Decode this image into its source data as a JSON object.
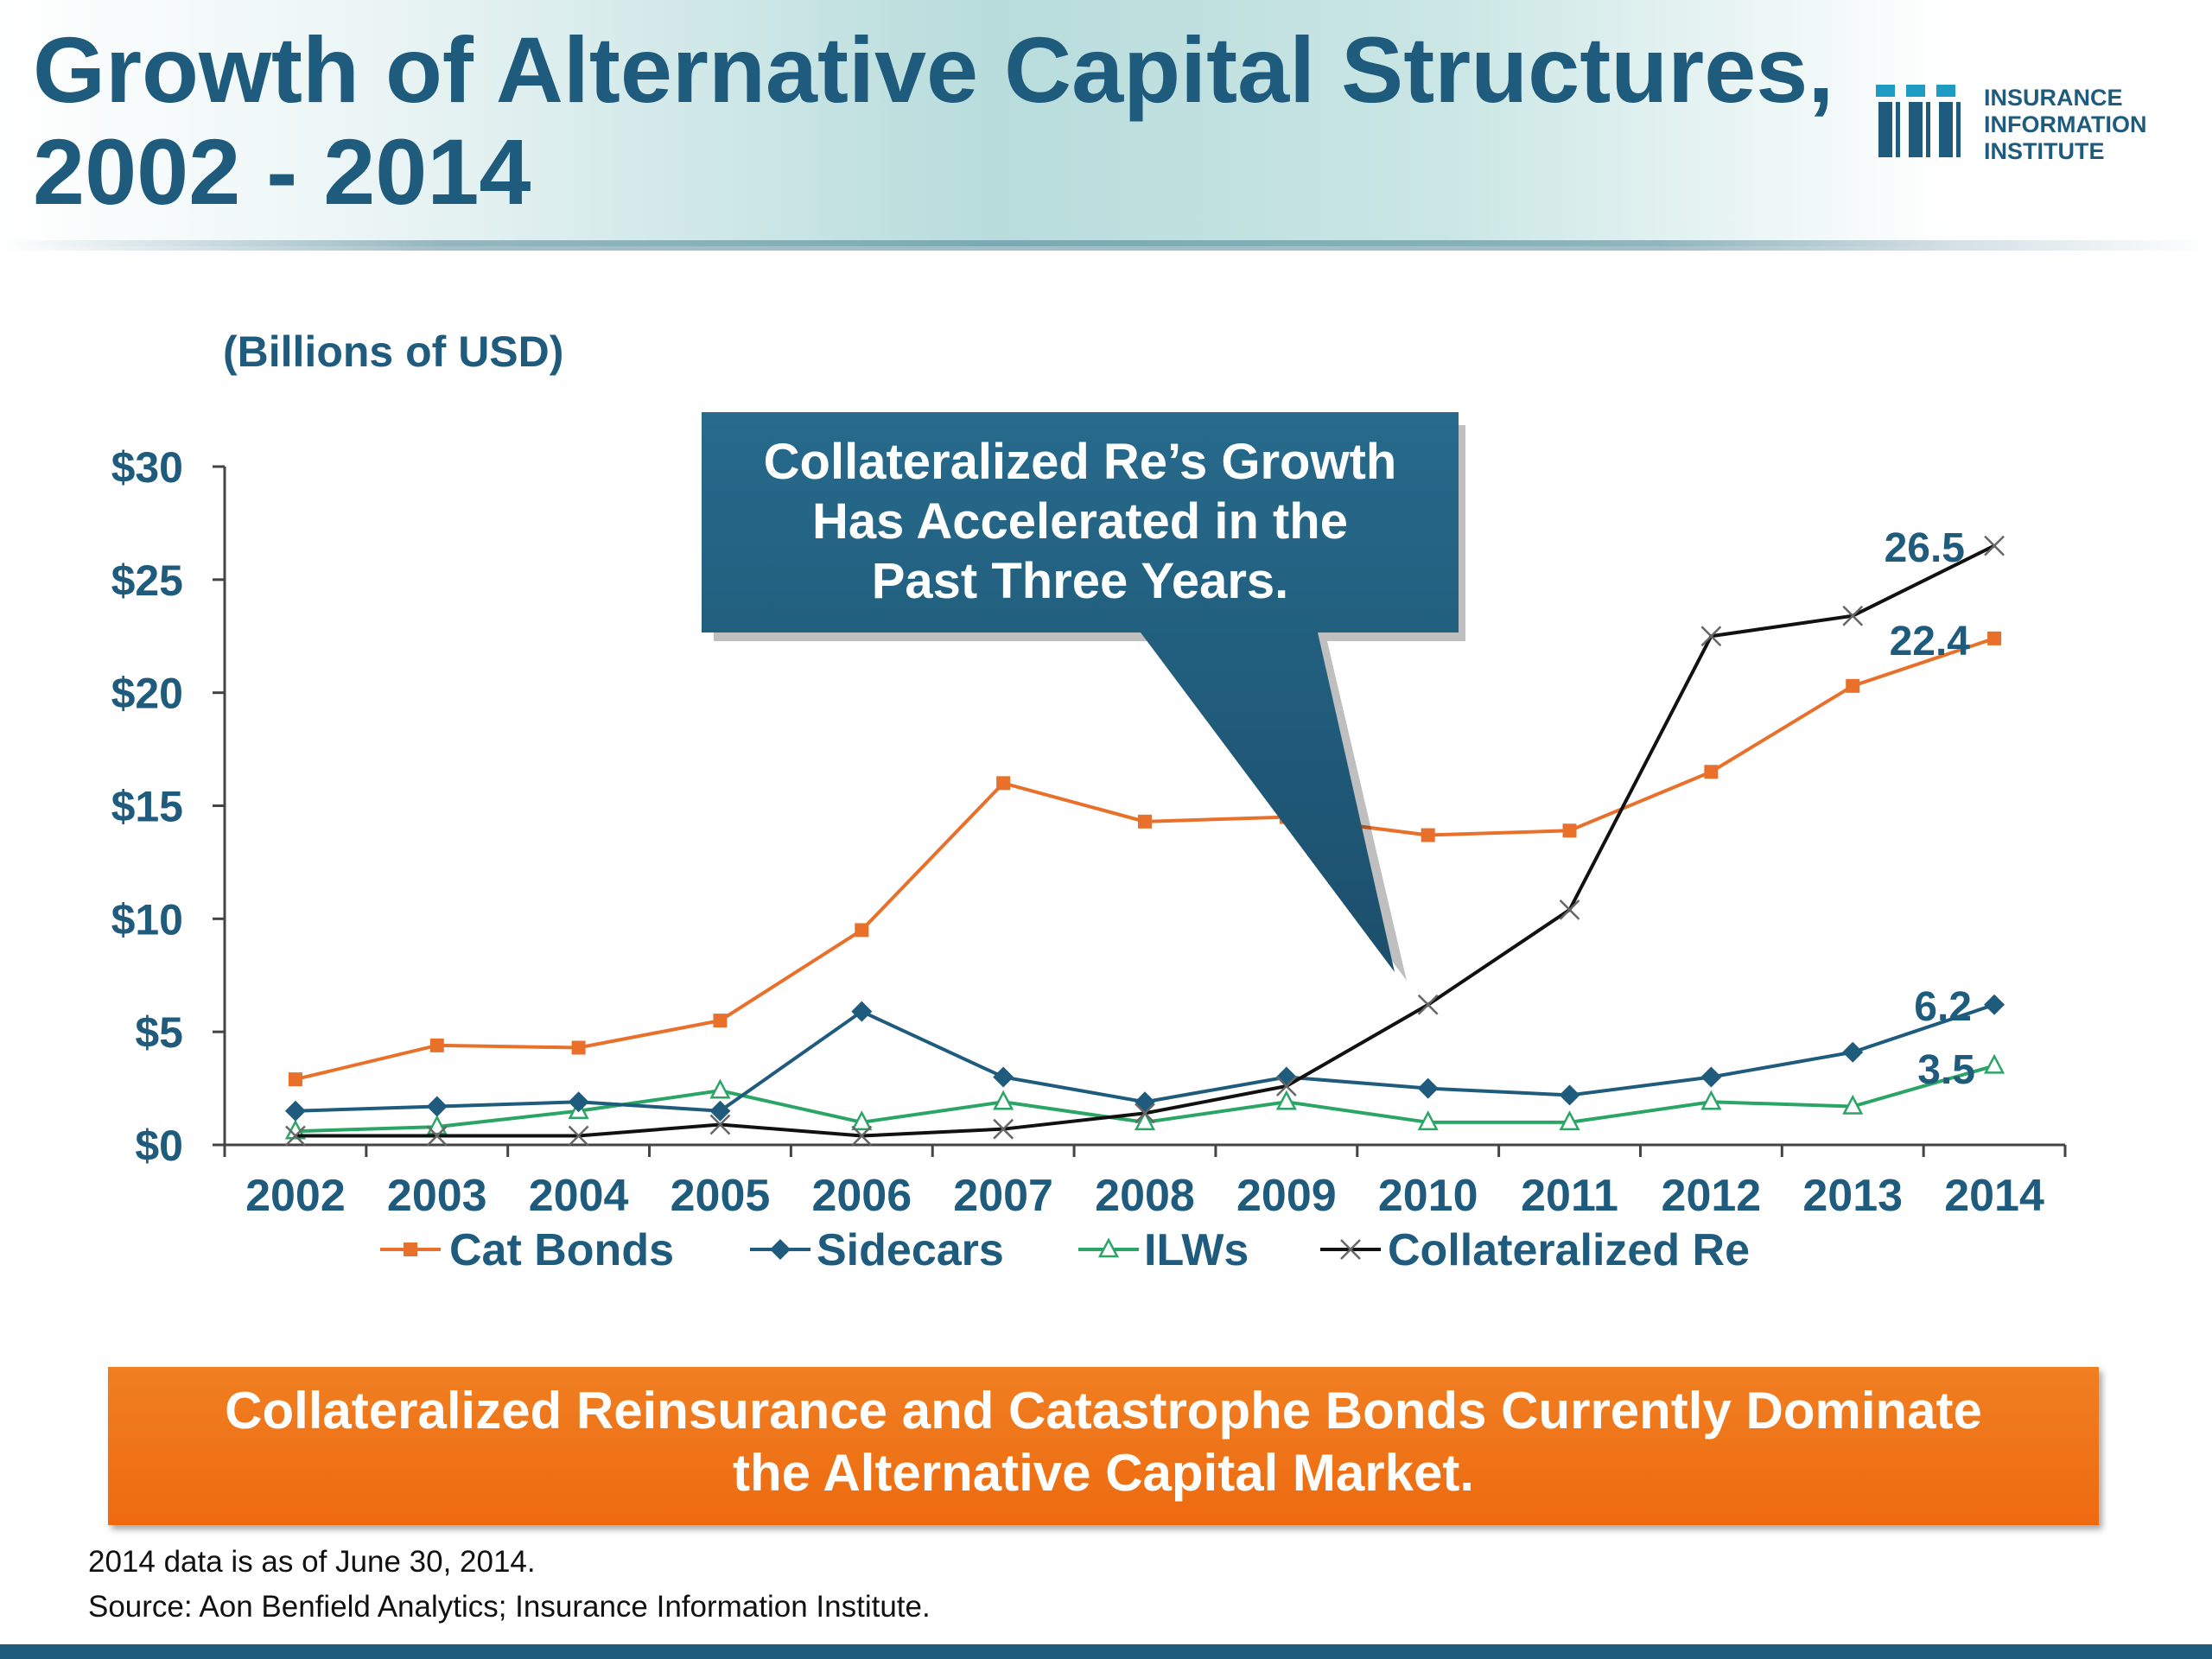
{
  "header": {
    "title_line1": "Growth of Alternative Capital Structures,",
    "title_line2": "2002 - 2014",
    "logo_lines": [
      "INSURANCE",
      "INFORMATION",
      "INSTITUTE"
    ]
  },
  "callout": {
    "lines": [
      "Collateralized Re’s Growth",
      "Has Accelerated in the",
      "Past Three Years."
    ]
  },
  "banner": {
    "lines": [
      "Collateralized Reinsurance and Catastrophe Bonds Currently Dominate",
      "the Alternative Capital Market."
    ]
  },
  "footnotes": {
    "note": "2014 data is as of June 30, 2014.",
    "source": "Source: Aon Benfield Analytics; Insurance Information Institute."
  },
  "colors": {
    "navy": "#1f5b7d",
    "cat_bonds": "#e8702a",
    "sidecars": "#1f5b7d",
    "ilws": "#2aa565",
    "collateralized_re": "#111111",
    "banner": "#ee6a10"
  },
  "chart_data": {
    "type": "line",
    "title": "Growth of Alternative Capital Structures, 2002 - 2014",
    "ylabel": "(Billions of USD)",
    "xlabel": "",
    "ylim": [
      0,
      30
    ],
    "yticks": [
      0,
      5,
      10,
      15,
      20,
      25,
      30
    ],
    "ytick_labels": [
      "$0",
      "$5",
      "$10",
      "$15",
      "$20",
      "$25",
      "$30"
    ],
    "categories": [
      "2002",
      "2003",
      "2004",
      "2005",
      "2006",
      "2007",
      "2008",
      "2009",
      "2010",
      "2011",
      "2012",
      "2013",
      "2014"
    ],
    "grid": false,
    "legend_position": "bottom",
    "series": [
      {
        "name": "Cat Bonds",
        "marker": "square",
        "color": "#e8702a",
        "values": [
          2.9,
          4.4,
          4.3,
          5.5,
          9.5,
          16.0,
          14.3,
          14.5,
          13.7,
          13.9,
          16.5,
          20.3,
          22.4
        ],
        "end_label": "22.4"
      },
      {
        "name": "Sidecars",
        "marker": "diamond",
        "color": "#1f5b7d",
        "values": [
          1.5,
          1.7,
          1.9,
          1.5,
          5.9,
          3.0,
          1.9,
          3.0,
          2.5,
          2.2,
          3.0,
          4.1,
          6.2
        ],
        "end_label": "6.2"
      },
      {
        "name": "ILWs",
        "marker": "triangle",
        "color": "#2aa565",
        "values": [
          0.6,
          0.8,
          1.5,
          2.4,
          1.0,
          1.9,
          1.0,
          1.9,
          1.0,
          1.0,
          1.9,
          1.7,
          3.5
        ],
        "end_label": "3.5"
      },
      {
        "name": "Collateralized Re",
        "marker": "x",
        "color": "#111111",
        "values": [
          0.4,
          0.4,
          0.4,
          0.9,
          0.4,
          0.7,
          1.4,
          2.6,
          6.2,
          10.4,
          22.5,
          23.4,
          26.5
        ],
        "end_label": "26.5"
      }
    ]
  }
}
